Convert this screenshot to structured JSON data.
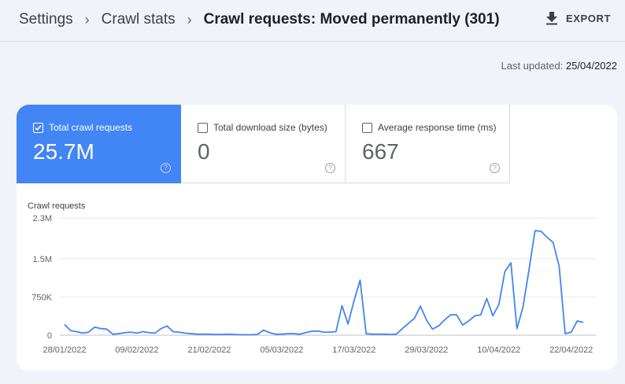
{
  "breadcrumb": {
    "items": [
      "Settings",
      "Crawl stats",
      "Crawl requests: Moved permanently (301)"
    ]
  },
  "header": {
    "export_label": "EXPORT",
    "export_icon": "download-icon"
  },
  "last_updated": {
    "label": "Last updated:",
    "value": "25/04/2022"
  },
  "metrics": [
    {
      "label": "Total crawl requests",
      "value": "25.7M",
      "checked": true
    },
    {
      "label": "Total download size (bytes)",
      "value": "0",
      "checked": false
    },
    {
      "label": "Average response time (ms)",
      "value": "667",
      "checked": false
    }
  ],
  "colors": {
    "accent": "#4285f4",
    "line": "#4285f4"
  },
  "chart_data": {
    "type": "line",
    "ylabel": "Crawl requests",
    "ytick_labels": [
      "0",
      "750K",
      "1.5M",
      "2.3M"
    ],
    "yticks": [
      0,
      750000,
      1500000,
      2300000
    ],
    "ylim": [
      0,
      2300000
    ],
    "xtick_labels": [
      "28/01/2022",
      "09/02/2022",
      "21/02/2022",
      "05/03/2022",
      "17/03/2022",
      "29/03/2022",
      "10/04/2022",
      "22/04/2022"
    ],
    "x_start": "28/01/2022",
    "x_end": "25/04/2022",
    "grid": true,
    "series": [
      {
        "values": [
          210000,
          90000,
          70000,
          40000,
          60000,
          160000,
          130000,
          120000,
          20000,
          30000,
          50000,
          60000,
          40000,
          70000,
          50000,
          40000,
          130000,
          180000,
          70000,
          60000,
          40000,
          30000,
          20000,
          20000,
          20000,
          15000,
          15000,
          20000,
          15000,
          10000,
          10000,
          10000,
          15000,
          100000,
          50000,
          20000,
          20000,
          30000,
          30000,
          20000,
          50000,
          80000,
          80000,
          60000,
          60000,
          70000,
          580000,
          220000,
          680000,
          1080000,
          30000,
          20000,
          20000,
          20000,
          15000,
          20000,
          130000,
          230000,
          330000,
          570000,
          300000,
          120000,
          180000,
          300000,
          400000,
          400000,
          200000,
          280000,
          380000,
          400000,
          720000,
          380000,
          600000,
          1250000,
          1420000,
          130000,
          550000,
          1280000,
          2050000,
          2040000,
          1920000,
          1820000,
          1350000,
          30000,
          60000,
          280000,
          250000
        ]
      }
    ]
  }
}
